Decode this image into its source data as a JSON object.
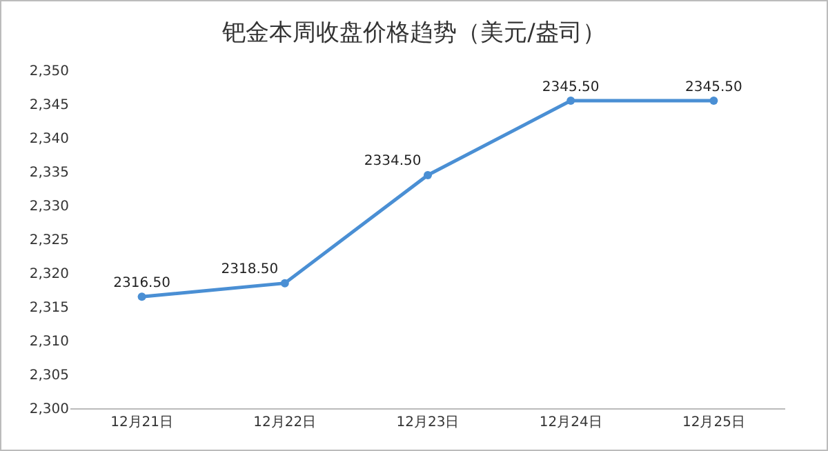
{
  "chart_data": {
    "type": "line",
    "title": "钯金本周收盘价格趋势（美元/盎司）",
    "categories": [
      "12月21日",
      "12月22日",
      "12月23日",
      "12月24日",
      "12月25日"
    ],
    "series": [
      {
        "color": "#4a8fd4",
        "values": [
          2316.5,
          2318.5,
          2334.5,
          2345.5,
          2345.5
        ],
        "value_labels": [
          "2316.50",
          "2318.50",
          "2334.50",
          "2345.50",
          "2345.50"
        ]
      }
    ],
    "ylim": [
      2300,
      2350
    ],
    "yticks": [
      {
        "value": 2300,
        "label": "2,300"
      },
      {
        "value": 2305,
        "label": "2,305"
      },
      {
        "value": 2310,
        "label": "2,310"
      },
      {
        "value": 2315,
        "label": "2,315"
      },
      {
        "value": 2320,
        "label": "2,320"
      },
      {
        "value": 2325,
        "label": "2,325"
      },
      {
        "value": 2330,
        "label": "2,330"
      },
      {
        "value": 2335,
        "label": "2,335"
      },
      {
        "value": 2340,
        "label": "2,340"
      },
      {
        "value": 2345,
        "label": "2,345"
      },
      {
        "value": 2350,
        "label": "2,350"
      }
    ],
    "marker": "circle",
    "line_style": "solid",
    "grid": false
  }
}
